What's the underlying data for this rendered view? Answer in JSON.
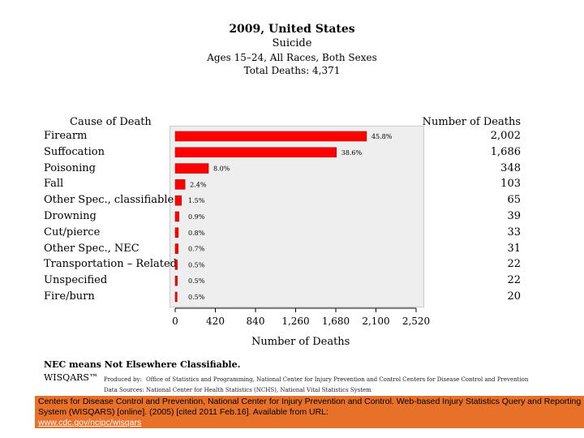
{
  "header": {
    "line1": "2009, United States",
    "line2": "Suicide",
    "line3": "Ages 15–24, All Races, Both Sexes",
    "line4": "Total Deaths: 4,371"
  },
  "columns": {
    "cause_label": "Cause of Death",
    "count_label": "Number of Deaths"
  },
  "chart_data": {
    "type": "bar",
    "orientation": "horizontal",
    "title": "2009, United States — Suicide, Ages 15–24, All Races, Both Sexes",
    "xlabel": "Number of Deaths",
    "ylabel": "Cause of Death",
    "xlim": [
      0,
      2520
    ],
    "xticks": [
      "0",
      "420",
      "840",
      "1,260",
      "1,680",
      "2,100",
      "2,520"
    ],
    "xtick_values": [
      0,
      420,
      840,
      1260,
      1680,
      2100,
      2520
    ],
    "categories": [
      "Firearm",
      "Suffocation",
      "Poisoning",
      "Fall",
      "Other Spec., classifiable",
      "Drowning",
      "Cut/pierce",
      "Other Spec., NEC",
      "Transportation – Related",
      "Unspecified",
      "Fire/burn"
    ],
    "values": [
      2002,
      1686,
      348,
      103,
      65,
      39,
      33,
      31,
      22,
      22,
      20
    ],
    "count_labels": [
      "2,002",
      "1,686",
      "348",
      "103",
      "65",
      "39",
      "33",
      "31",
      "22",
      "22",
      "20"
    ],
    "percent_labels": [
      "45.8%",
      "38.6%",
      "8.0%",
      "2.4%",
      "1.5%",
      "0.9%",
      "0.8%",
      "0.7%",
      "0.5%",
      "0.5%",
      "0.5%"
    ],
    "bar_color": "#ff0000"
  },
  "footnote": {
    "nec": "NEC means Not Elsewhere Classifiable.",
    "brand": "WISQARS™",
    "produced_label": "Produced by:",
    "produced_by": "Office of Statistics and Programming, National Center for Injury Prevention and Control   Centers for Disease Control and Prevention",
    "source_label": "Data Sources:",
    "source": "National Center for Health Statistics (NCHS), National Vital Statistics System"
  },
  "banner": {
    "citation": "Centers for Disease Control and Prevention, National Center for Injury Prevention and Control. Web-based Injury Statistics Query and Reporting System (WISQARS) [online]. (2005) [cited 2011 Feb.16]. Available from URL:",
    "url": "www.cdc.gov/ncipc/wisqars"
  }
}
